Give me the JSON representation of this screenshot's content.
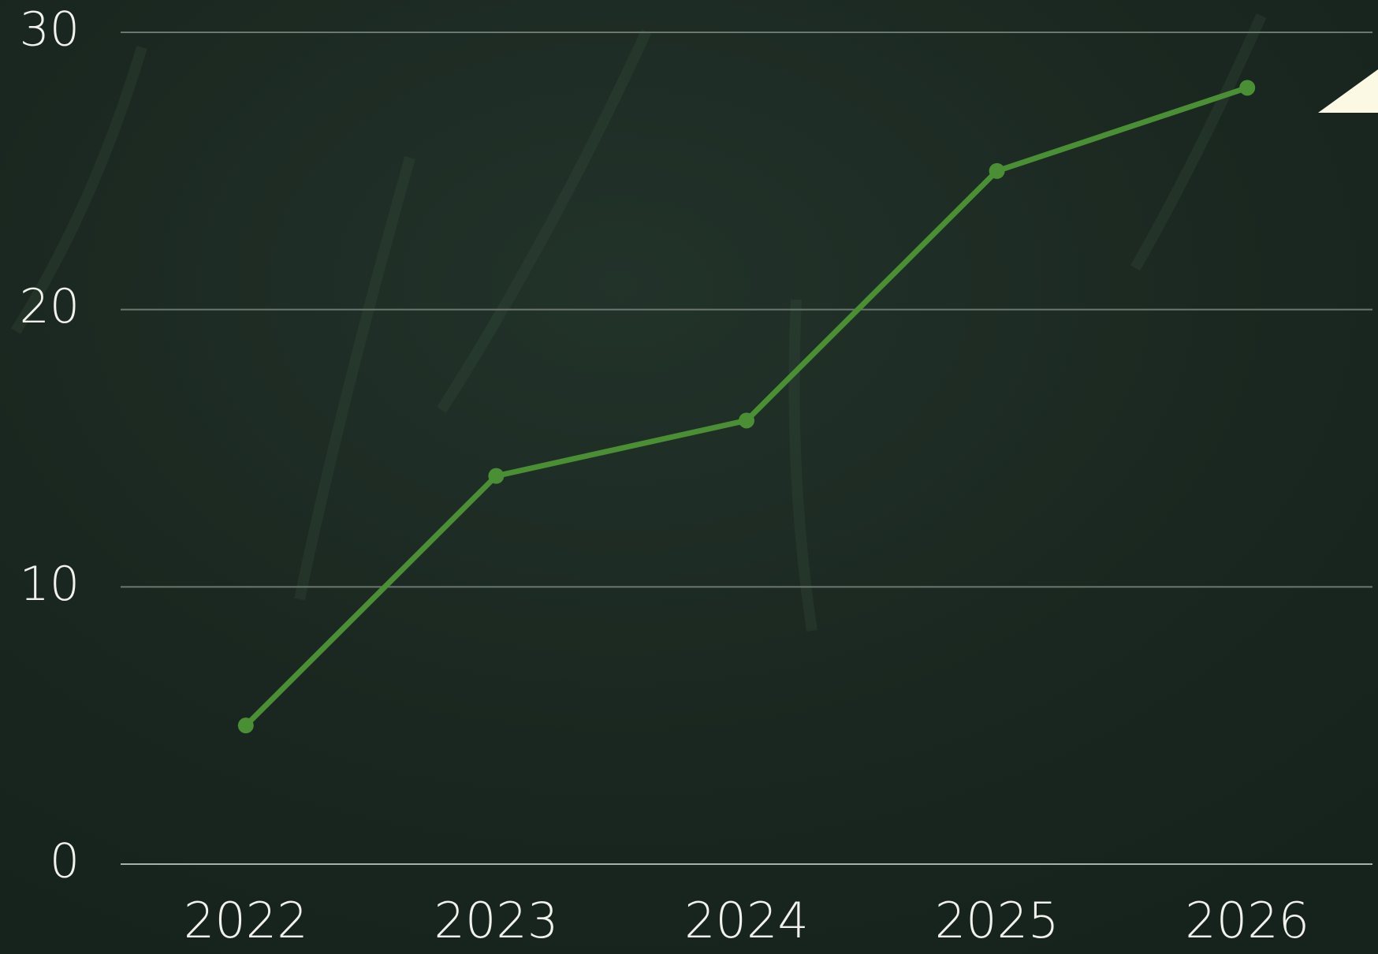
{
  "chart_data": {
    "type": "line",
    "categories": [
      "2022",
      "2023",
      "2024",
      "2025",
      "2026"
    ],
    "series": [
      {
        "color": "#4a8f34",
        "values": [
          5,
          14,
          16,
          25,
          28
        ]
      }
    ],
    "ylim": [
      0,
      30
    ],
    "yticks": [
      0,
      10,
      20,
      30
    ],
    "grid": true
  }
}
